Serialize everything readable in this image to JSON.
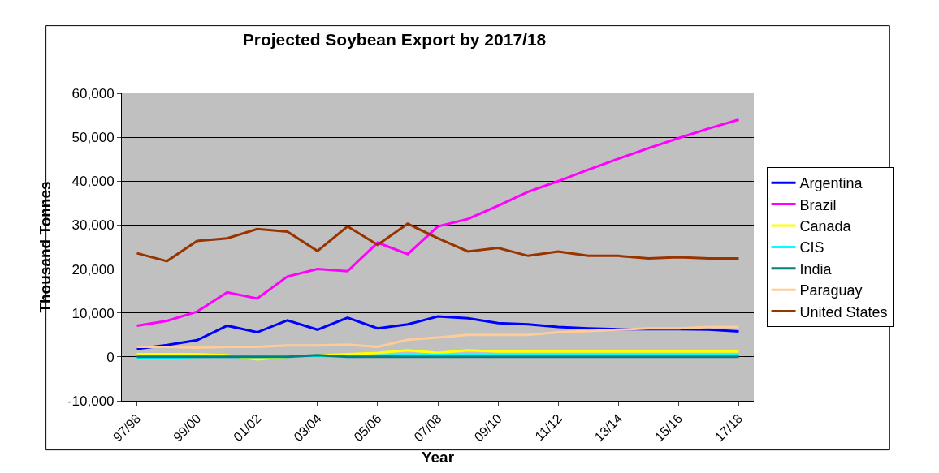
{
  "chart_data": {
    "type": "line",
    "title": "Projected Soybean Export by 2017/18",
    "xlabel": "Year",
    "ylabel": "Thousand Tonnes",
    "categories": [
      "97/98",
      null,
      "99/00",
      null,
      "01/02",
      null,
      "03/04",
      null,
      "05/06",
      null,
      "07/08",
      null,
      "09/10",
      null,
      "11/12",
      null,
      "13/14",
      null,
      "15/16",
      null,
      "17/18"
    ],
    "series": [
      {
        "name": "Argentina",
        "color": "#0000ff",
        "values": [
          1800,
          2700,
          3800,
          7100,
          5600,
          8300,
          6200,
          8900,
          6500,
          7400,
          9200,
          8800,
          7700,
          7400,
          6800,
          6500,
          6300,
          6300,
          6300,
          6200,
          5800
        ]
      },
      {
        "name": "Brazil",
        "color": "#ff00ff",
        "values": [
          7100,
          8200,
          10300,
          14700,
          13300,
          18300,
          20000,
          19500,
          26000,
          23400,
          29700,
          31400,
          34400,
          37600,
          40000,
          42600,
          45100,
          47500,
          49800,
          52000,
          54000
        ]
      },
      {
        "name": "Canada",
        "color": "#ffff00",
        "values": [
          600,
          600,
          600,
          400,
          -600,
          0,
          null,
          600,
          900,
          1500,
          900,
          1500,
          1200,
          1200,
          1200,
          1200,
          1200,
          1200,
          1200,
          1200,
          1200
        ]
      },
      {
        "name": "CIS",
        "color": "#00ffff",
        "values": [
          -200,
          -200,
          0,
          0,
          0,
          0,
          200,
          0,
          300,
          500,
          500,
          500,
          500,
          500,
          500,
          500,
          500,
          500,
          500,
          500,
          500
        ]
      },
      {
        "name": "India",
        "color": "#008080",
        "values": [
          0,
          0,
          0,
          0,
          0,
          0,
          400,
          0,
          0,
          0,
          0,
          0,
          0,
          0,
          0,
          0,
          0,
          0,
          0,
          0,
          0
        ]
      },
      {
        "name": "Paraguay",
        "color": "#ffcc99",
        "values": [
          2300,
          2300,
          2100,
          2300,
          2300,
          2600,
          2600,
          2800,
          2300,
          3900,
          4400,
          5000,
          5000,
          5000,
          5600,
          5900,
          6200,
          6500,
          6500,
          6800,
          6800
        ]
      },
      {
        "name": "United States",
        "color": "#993300",
        "values": [
          23600,
          21800,
          26400,
          27000,
          29100,
          28500,
          24100,
          29700,
          25500,
          30300,
          27000,
          24000,
          24800,
          23000,
          24000,
          23000,
          23000,
          22400,
          22700,
          22400,
          22400
        ]
      }
    ],
    "ylim": [
      -10000,
      60000
    ],
    "yticks": [
      {
        "value": -10000,
        "label": "-10,000"
      },
      {
        "value": 0,
        "label": "0"
      },
      {
        "value": 10000,
        "label": "10,000"
      },
      {
        "value": 20000,
        "label": "20,000"
      },
      {
        "value": 30000,
        "label": "30,000"
      },
      {
        "value": 40000,
        "label": "40,000"
      },
      {
        "value": 50000,
        "label": "50,000"
      },
      {
        "value": 60000,
        "label": "60,000"
      }
    ],
    "grid": "y",
    "legend": "right",
    "marker": "none",
    "line_style": "solid"
  }
}
